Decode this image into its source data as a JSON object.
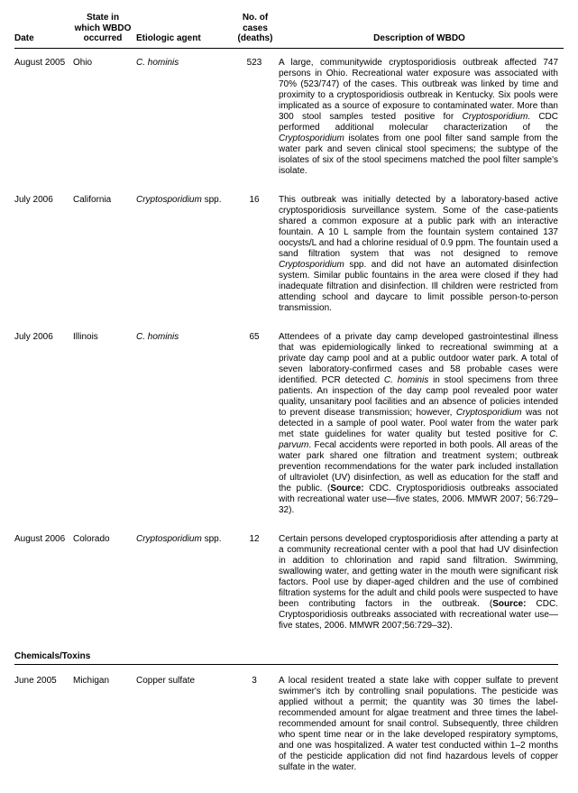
{
  "columns": {
    "date": "Date",
    "state": "State in\nwhich WBDO\noccurred",
    "agent": "Etiologic agent",
    "cases": "No. of\ncases\n(deaths)",
    "desc": "Description of WBDO"
  },
  "rows": [
    {
      "date": "August 2005",
      "state": "Ohio",
      "agent": "C. hominis",
      "agent_italic": true,
      "cases": "523",
      "desc_html": "A large, communitywide cryptosporidiosis outbreak affected 747 persons in Ohio. Recreational water exposure was associated with 70% (523/747) of the cases. This outbreak was linked by time and proximity to a cryptosporidiosis outbreak in Kentucky. Six pools were implicated as a source of exposure to contaminated water. More than 300 stool samples tested positive for <span class=\"italic\">Cryptosporidium</span>. CDC performed additional molecular characterization of the <span class=\"italic\">Cryptosporidium</span> isolates from one pool filter sand sample from the water park and seven clinical stool specimens; the subtype of the isolates of six of the stool specimens matched the pool filter sample's isolate."
    },
    {
      "date": "July 2006",
      "state": "California",
      "agent": "Cryptosporidium spp.",
      "agent_italic_prefix": "Cryptosporidium",
      "agent_suffix": " spp.",
      "cases": "16",
      "desc_html": "This outbreak was initially detected by a laboratory-based active cryptosporidiosis surveillance system. Some of the case-patients shared a common exposure at a public park with an interactive fountain. A 10 L sample from the fountain system contained 137 oocysts/L and had a chlorine residual of 0.9 ppm. The fountain used a sand filtration system that was not designed to remove <span class=\"italic\">Cryptosporidium</span> spp. and did not have an automated disinfection system. Similar public fountains in the area were closed if they had inadequate filtration and disinfection. Ill children were restricted from attending school and daycare to limit possible person-to-person transmission."
    },
    {
      "date": "July 2006",
      "state": "Illinois",
      "agent": "C. hominis",
      "agent_italic": true,
      "cases": "65",
      "desc_html": "Attendees of a private day camp developed gastrointestinal illness that was epidemiologically linked to recreational swimming at a private day camp pool and at a public outdoor water park. A total of seven laboratory-confirmed cases and 58 probable cases were identified. PCR detected <span class=\"italic\">C. hominis</span> in stool specimens from three patients. An inspection of the day camp pool revealed poor water quality, unsanitary pool facilities and an absence of policies intended to prevent disease transmission; however, <span class=\"italic\">Cryptosporidium</span> was not detected in a sample of pool water. Pool water from the water park met state guidelines for water quality but tested positive for <span class=\"italic\">C. parvum</span>. Fecal accidents were reported in both pools. All areas of the water park shared one filtration and treatment system; outbreak prevention recommendations for the water park included installation of ultraviolet (UV) disinfection, as well as education for the staff and the public. (<b>Source:</b> CDC. Cryptosporidiosis outbreaks associated with recreational water use—five states, 2006. MMWR 2007; 56:729–32)."
    },
    {
      "date": "August 2006",
      "state": "Colorado",
      "agent": "Cryptosporidium spp.",
      "agent_italic_prefix": "Cryptosporidium",
      "agent_suffix": " spp.",
      "cases": "12",
      "desc_html": "Certain persons developed cryptosporidiosis after attending a party at a community recreational center with a pool that had UV disinfection in addition to chlorination and rapid sand filtration. Swimming, swallowing water, and getting water in the mouth were significant risk factors. Pool use by diaper-aged children and the use of combined filtration systems for the adult and child pools were suspected to have been contributing factors in the outbreak. (<b>Source:</b> CDC. Cryptosporidiosis outbreaks associated with recreational water use—five states, 2006. MMWR 2007;56:729–32)."
    }
  ],
  "section": "Chemicals/Toxins",
  "section_rows": [
    {
      "date": "June 2005",
      "state": "Michigan",
      "agent": "Copper sulfate",
      "cases": "3",
      "desc_html": "A local resident treated a state lake with copper sulfate to prevent swimmer's itch by controlling snail populations. The pesticide was applied without a permit; the quantity was 30 times the label-recommended amount for algae treatment and three times the label-recommended amount for snail control. Subsequently, three children who spent time near or in the lake developed respiratory symptoms, and one was hospitalized. A water test conducted within 1–2 months of the pesticide application did not find hazardous levels of copper sulfate in the water."
    }
  ]
}
